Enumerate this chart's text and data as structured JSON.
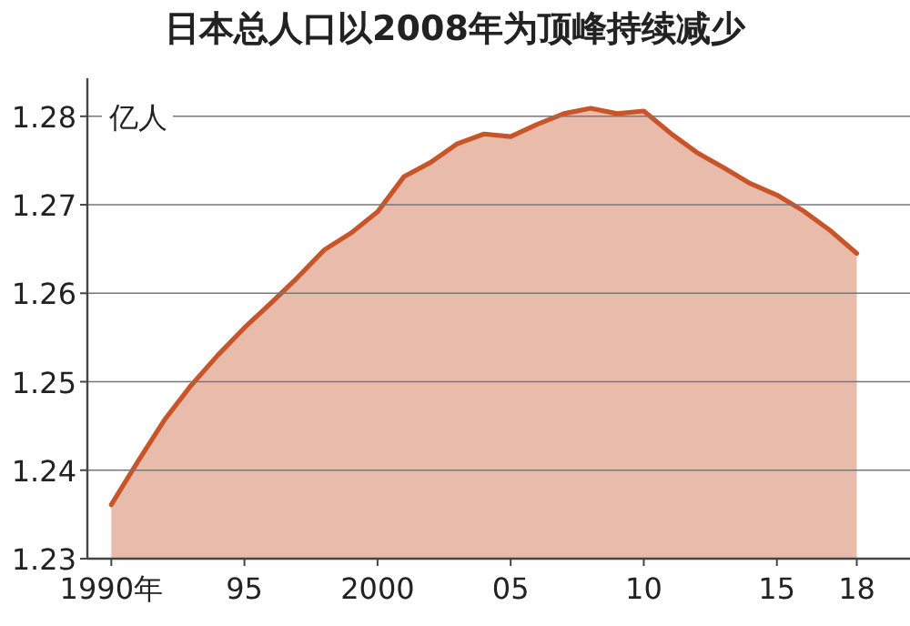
{
  "chart_data": {
    "type": "area",
    "title": "日本总人口以2008年为顶峰持续减少",
    "ylabel": "亿人",
    "x": [
      1990,
      1991,
      1992,
      1993,
      1994,
      1995,
      1996,
      1997,
      1998,
      1999,
      2000,
      2001,
      2002,
      2003,
      2004,
      2005,
      2006,
      2007,
      2008,
      2009,
      2010,
      2011,
      2012,
      2013,
      2014,
      2015,
      2016,
      2017,
      2018
    ],
    "series": [
      {
        "color": "#c8552a",
        "values": [
          1.2361,
          1.241,
          1.2457,
          1.2496,
          1.253,
          1.2561,
          1.2589,
          1.2618,
          1.2649,
          1.2668,
          1.2692,
          1.2732,
          1.2748,
          1.2769,
          1.278,
          1.2777,
          1.2791,
          1.2803,
          1.2809,
          1.2803,
          1.2806,
          1.2781,
          1.2759,
          1.2742,
          1.2724,
          1.2711,
          1.2693,
          1.2671,
          1.2645
        ]
      }
    ],
    "xlim": [
      1989.1,
      2020
    ],
    "ylim": [
      1.23,
      1.2843
    ],
    "xticks": [
      {
        "value": 1990,
        "label": "1990年"
      },
      {
        "value": 1995,
        "label": "95"
      },
      {
        "value": 2000,
        "label": "2000"
      },
      {
        "value": 2005,
        "label": "05"
      },
      {
        "value": 2010,
        "label": "10"
      },
      {
        "value": 2015,
        "label": "15"
      },
      {
        "value": 2018,
        "label": "18"
      }
    ],
    "yticks": [
      1.23,
      1.24,
      1.25,
      1.26,
      1.27,
      1.28
    ],
    "grid": "y"
  }
}
